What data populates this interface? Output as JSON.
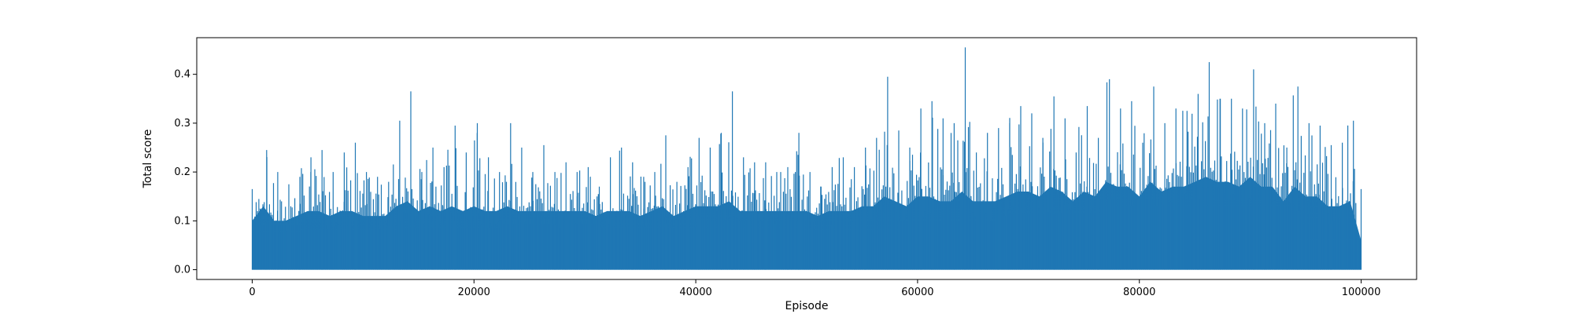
{
  "chart_data": {
    "type": "line",
    "title": "",
    "xlabel": "Episode",
    "ylabel": "Total score",
    "xlim": [
      -5000,
      105000
    ],
    "ylim": [
      -0.02,
      0.475
    ],
    "xticks": [
      0,
      20000,
      40000,
      60000,
      80000,
      100000
    ],
    "yticks": [
      0.0,
      0.1,
      0.2,
      0.3,
      0.4
    ],
    "xtick_labels": [
      "0",
      "20000",
      "40000",
      "60000",
      "80000",
      "100000"
    ],
    "ytick_labels": [
      "0.0",
      "0.1",
      "0.2",
      "0.3",
      "0.4"
    ],
    "grid": false,
    "legend": "none",
    "series": [
      {
        "color": "#1f77b4",
        "x": [
          0,
          1000,
          2000,
          3000,
          4000,
          5000,
          6000,
          7000,
          8000,
          9000,
          10000,
          11000,
          12000,
          13000,
          14000,
          15000,
          16000,
          17000,
          18000,
          19000,
          20000,
          21000,
          22000,
          23000,
          24000,
          25000,
          26000,
          27000,
          28000,
          29000,
          30000,
          31000,
          32000,
          33000,
          34000,
          35000,
          36000,
          37000,
          38000,
          39000,
          40000,
          41000,
          42000,
          43000,
          44000,
          45000,
          46000,
          47000,
          48000,
          49000,
          50000,
          51000,
          52000,
          53000,
          54000,
          55000,
          56000,
          57000,
          58000,
          59000,
          60000,
          61000,
          62000,
          63000,
          64000,
          65000,
          66000,
          67000,
          68000,
          69000,
          70000,
          71000,
          72000,
          73000,
          74000,
          75000,
          76000,
          77000,
          78000,
          79000,
          80000,
          81000,
          82000,
          83000,
          84000,
          85000,
          86000,
          87000,
          88000,
          89000,
          90000,
          91000,
          92000,
          93000,
          94000,
          95000,
          96000,
          97000,
          98000,
          99000,
          100000
        ],
        "y_max": [
          0.165,
          0.245,
          0.2,
          0.175,
          0.19,
          0.23,
          0.245,
          0.2,
          0.24,
          0.26,
          0.2,
          0.19,
          0.18,
          0.305,
          0.365,
          0.2,
          0.25,
          0.21,
          0.295,
          0.24,
          0.3,
          0.23,
          0.2,
          0.3,
          0.25,
          0.2,
          0.255,
          0.2,
          0.22,
          0.2,
          0.21,
          0.17,
          0.23,
          0.25,
          0.22,
          0.19,
          0.2,
          0.275,
          0.18,
          0.21,
          0.27,
          0.25,
          0.28,
          0.365,
          0.23,
          0.22,
          0.22,
          0.2,
          0.21,
          0.28,
          0.2,
          0.17,
          0.21,
          0.23,
          0.21,
          0.25,
          0.27,
          0.395,
          0.285,
          0.25,
          0.33,
          0.345,
          0.31,
          0.3,
          0.455,
          0.24,
          0.28,
          0.29,
          0.3,
          0.335,
          0.32,
          0.27,
          0.355,
          0.31,
          0.24,
          0.335,
          0.27,
          0.39,
          0.33,
          0.345,
          0.26,
          0.375,
          0.3,
          0.33,
          0.325,
          0.36,
          0.425,
          0.35,
          0.35,
          0.33,
          0.41,
          0.3,
          0.34,
          0.25,
          0.375,
          0.3,
          0.295,
          0.255,
          0.26,
          0.305,
          0.165
        ],
        "y_min": [
          0.0,
          0.0,
          0.0,
          0.0,
          0.0,
          0.0,
          0.0,
          0.0,
          0.0,
          0.0,
          0.0,
          0.0,
          0.0,
          0.0,
          0.0,
          0.0,
          0.0,
          0.0,
          0.0,
          0.0,
          0.0,
          0.0,
          0.0,
          0.0,
          0.0,
          0.0,
          0.0,
          0.0,
          0.0,
          0.0,
          0.0,
          0.0,
          0.0,
          0.0,
          0.0,
          0.0,
          0.0,
          0.0,
          0.0,
          0.0,
          0.0,
          0.0,
          0.0,
          0.0,
          0.0,
          0.0,
          0.0,
          0.0,
          0.0,
          0.0,
          0.0,
          0.0,
          0.0,
          0.0,
          0.0,
          0.0,
          0.0,
          0.0,
          0.0,
          0.0,
          0.0,
          0.0,
          0.0,
          0.0,
          0.0,
          0.0,
          0.0,
          0.0,
          0.0,
          0.0,
          0.0,
          0.0,
          0.0,
          0.0,
          0.0,
          0.0,
          0.0,
          0.0,
          0.0,
          0.0,
          0.0,
          0.0,
          0.0,
          0.0,
          0.0,
          0.0,
          0.0,
          0.0,
          0.0,
          0.0,
          0.0,
          0.0,
          0.0,
          0.0,
          0.0,
          0.0,
          0.0,
          0.0,
          0.0,
          0.0,
          0.0
        ],
        "y_typical": [
          0.1,
          0.13,
          0.1,
          0.1,
          0.11,
          0.12,
          0.12,
          0.11,
          0.12,
          0.12,
          0.11,
          0.11,
          0.11,
          0.13,
          0.14,
          0.12,
          0.13,
          0.12,
          0.13,
          0.12,
          0.13,
          0.12,
          0.12,
          0.13,
          0.12,
          0.12,
          0.12,
          0.12,
          0.12,
          0.12,
          0.12,
          0.11,
          0.12,
          0.12,
          0.12,
          0.11,
          0.12,
          0.13,
          0.11,
          0.12,
          0.13,
          0.13,
          0.13,
          0.14,
          0.12,
          0.12,
          0.12,
          0.12,
          0.12,
          0.12,
          0.12,
          0.11,
          0.12,
          0.12,
          0.12,
          0.13,
          0.13,
          0.15,
          0.14,
          0.13,
          0.15,
          0.15,
          0.14,
          0.14,
          0.16,
          0.14,
          0.14,
          0.14,
          0.15,
          0.16,
          0.16,
          0.15,
          0.17,
          0.16,
          0.14,
          0.16,
          0.15,
          0.18,
          0.17,
          0.17,
          0.15,
          0.18,
          0.16,
          0.17,
          0.17,
          0.18,
          0.19,
          0.18,
          0.18,
          0.17,
          0.19,
          0.17,
          0.17,
          0.14,
          0.17,
          0.15,
          0.15,
          0.13,
          0.13,
          0.14,
          0.06
        ]
      }
    ]
  }
}
